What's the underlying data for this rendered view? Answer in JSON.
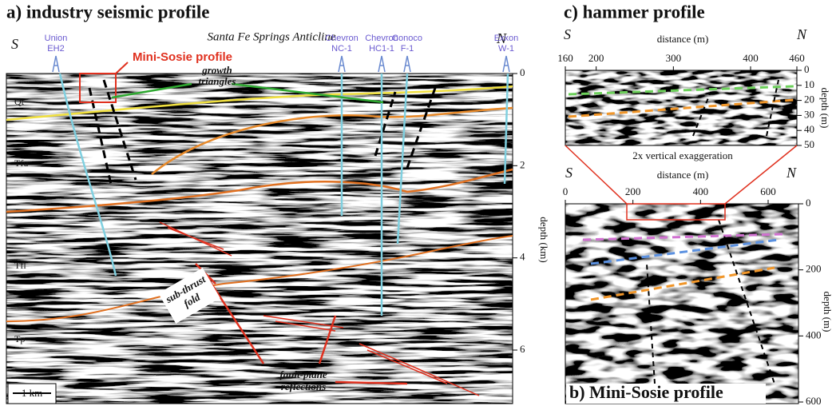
{
  "panel_a": {
    "title": "a) industry seismic profile",
    "subtitle": "Santa Fe Springs Anticline",
    "south": "S",
    "north": "N",
    "wells": [
      {
        "operator": "Union",
        "name": "EH2"
      },
      {
        "operator": "Chevron",
        "name": "NC-1"
      },
      {
        "operator": "Chevron",
        "name": "HC1-1"
      },
      {
        "operator": "Conoco",
        "name": "F-1"
      },
      {
        "operator": "Exxon",
        "name": "W-1"
      }
    ],
    "mini_sosie_label": "Mini-Sosie profile",
    "growth_triangles": [
      "growth",
      "triangles"
    ],
    "sub_thrust_fold": [
      "sub-thrust",
      "fold"
    ],
    "fault_plane_reflections": [
      "fault-plane",
      "reflections"
    ],
    "formations": [
      "Qt",
      "Tfu",
      "Tfl",
      "Tp"
    ],
    "depth_axis": {
      "label": "depth (km)",
      "ticks": [
        0,
        2,
        4,
        6
      ]
    },
    "scale_bar": "1 km"
  },
  "panel_c": {
    "title": "c) hammer profile",
    "south": "S",
    "north": "N",
    "distance_axis": {
      "label": "distance (m)",
      "ticks": [
        160,
        200,
        300,
        400,
        460
      ]
    },
    "depth_axis": {
      "label": "depth (m)",
      "ticks": [
        0,
        10,
        20,
        30,
        40,
        50
      ]
    },
    "note": "2x vertical exaggeration"
  },
  "panel_b": {
    "title": "b) Mini-Sosie profile",
    "south": "S",
    "north": "N",
    "distance_axis": {
      "label": "distance (m)",
      "ticks": [
        0,
        200,
        400,
        600
      ]
    },
    "depth_axis": {
      "label": "depth (m)",
      "ticks": [
        0,
        200,
        400,
        600
      ]
    }
  }
}
